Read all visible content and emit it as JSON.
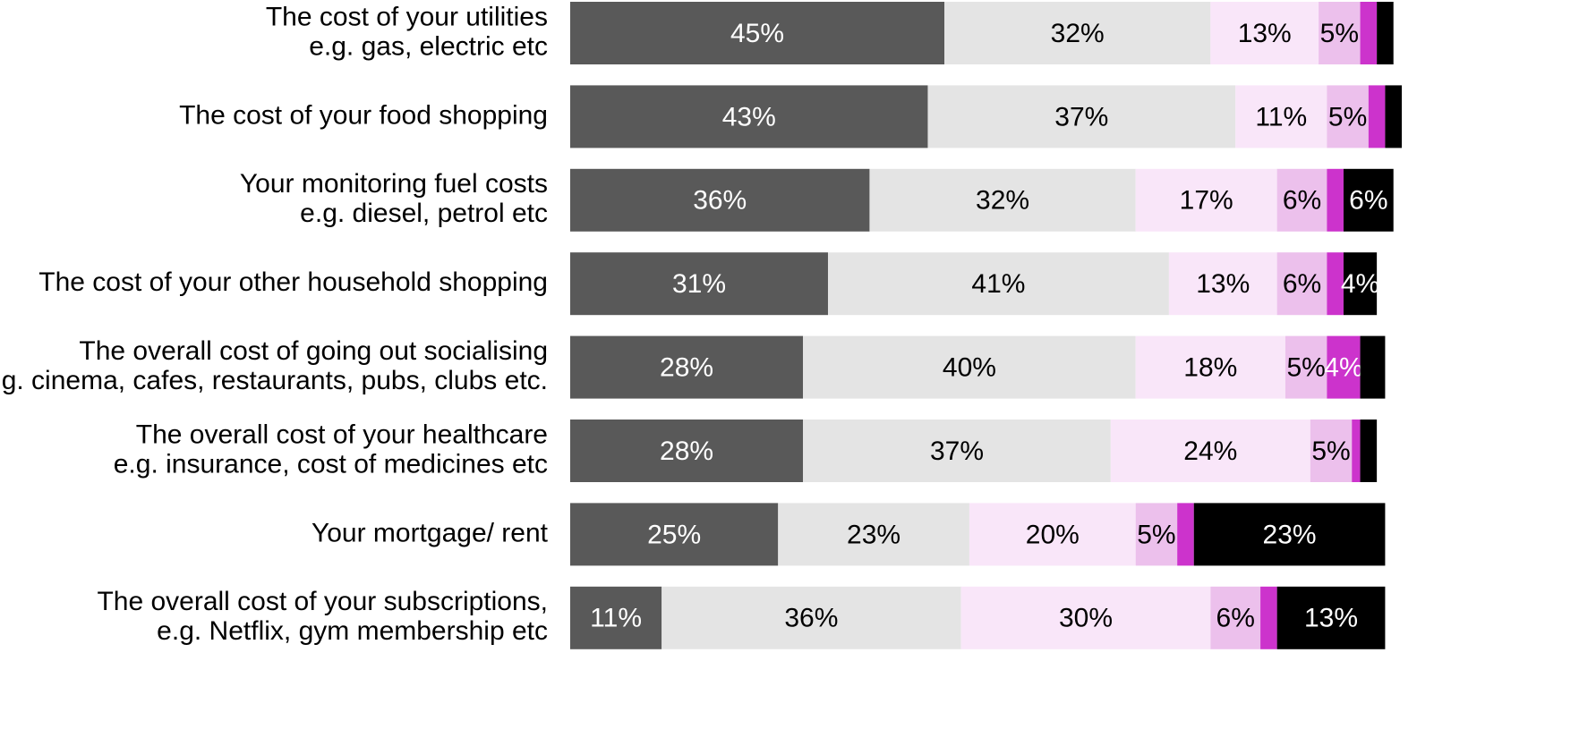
{
  "chart_data": {
    "type": "stacked_bar_horizontal",
    "categories": [
      [
        "The cost of your utilities",
        "e.g. gas, electric etc"
      ],
      [
        "The cost of your food shopping"
      ],
      [
        "Your monitoring fuel costs",
        "e.g. diesel, petrol etc"
      ],
      [
        "The cost of your other household shopping"
      ],
      [
        "The overall cost of going out socialising",
        "e.g. cinema, cafes, restaurants, pubs, clubs etc."
      ],
      [
        "The overall cost of your healthcare",
        "e.g. insurance, cost of medicines etc"
      ],
      [
        "Your mortgage/ rent"
      ],
      [
        "The overall cost of your subscriptions,",
        "e.g. Netflix, gym membership etc"
      ]
    ],
    "xlim": [
      0,
      100
    ],
    "series": [
      {
        "color": "#595959",
        "label_color": "#ffffff",
        "values": [
          45,
          43,
          36,
          31,
          28,
          28,
          25,
          11
        ],
        "value_labels": [
          "45%",
          "43%",
          "36%",
          "31%",
          "28%",
          "28%",
          "25%",
          "11%"
        ]
      },
      {
        "color": "#e4e4e4",
        "label_color": "#000000",
        "values": [
          32,
          37,
          32,
          41,
          40,
          37,
          23,
          36
        ],
        "value_labels": [
          "32%",
          "37%",
          "32%",
          "41%",
          "40%",
          "37%",
          "23%",
          "36%"
        ]
      },
      {
        "color": "#f9e6f9",
        "label_color": "#000000",
        "values": [
          13,
          11,
          17,
          13,
          18,
          24,
          20,
          30
        ],
        "value_labels": [
          "13%",
          "11%",
          "17%",
          "13%",
          "18%",
          "24%",
          "20%",
          "30%"
        ]
      },
      {
        "color": "#ecc0ec",
        "label_color": "#000000",
        "values": [
          5,
          5,
          6,
          6,
          5,
          5,
          5,
          6
        ],
        "value_labels": [
          "5%",
          "5%",
          "6%",
          "6%",
          "5%",
          "5%",
          "5%",
          "6%"
        ]
      },
      {
        "color": "#cc33cc",
        "label_color": "#ffffff",
        "values": [
          2,
          2,
          2,
          2,
          4,
          1,
          2,
          2
        ],
        "value_labels": [
          null,
          null,
          null,
          null,
          "4%",
          null,
          null,
          null
        ]
      },
      {
        "color": "#000000",
        "label_color": "#ffffff",
        "values": [
          2,
          2,
          6,
          4,
          3,
          2,
          23,
          13
        ],
        "value_labels": [
          null,
          null,
          "6%",
          "4%",
          null,
          null,
          "23%",
          "13%"
        ]
      }
    ]
  }
}
